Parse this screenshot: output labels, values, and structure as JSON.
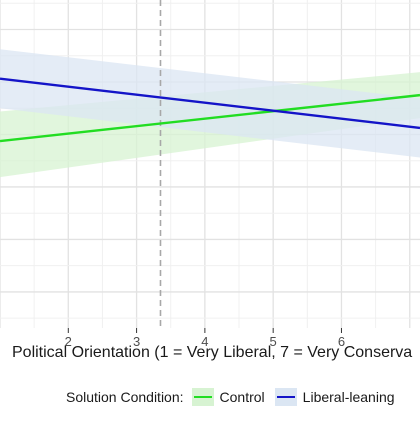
{
  "chart_data": {
    "type": "line",
    "xlabel": "Political Orientation (1 = Very Liberal, 7 = Very Conserva",
    "x_ticks": [
      "2",
      "3",
      "4",
      "5",
      "6"
    ],
    "xlim": [
      1.0,
      7.15
    ],
    "ylim": [
      0,
      1
    ],
    "grid": true,
    "reference_line": {
      "x": 3.35,
      "style": "dashed"
    },
    "legend": {
      "title": "Solution Condition:",
      "position": "bottom"
    },
    "series": [
      {
        "name": "Control",
        "color": "#22dd22",
        "band_color": "#d7f3d2",
        "x": [
          1.0,
          7.15
        ],
        "y": [
          0.57,
          0.71
        ],
        "ci_lower": [
          0.46,
          0.64
        ],
        "ci_upper": [
          0.66,
          0.78
        ]
      },
      {
        "name": "Liberal-leaning",
        "color": "#1414c8",
        "band_color": "#dbe6f3",
        "x": [
          1.0,
          7.15
        ],
        "y": [
          0.76,
          0.61
        ],
        "ci_lower": [
          0.67,
          0.52
        ],
        "ci_upper": [
          0.85,
          0.7
        ]
      }
    ]
  }
}
